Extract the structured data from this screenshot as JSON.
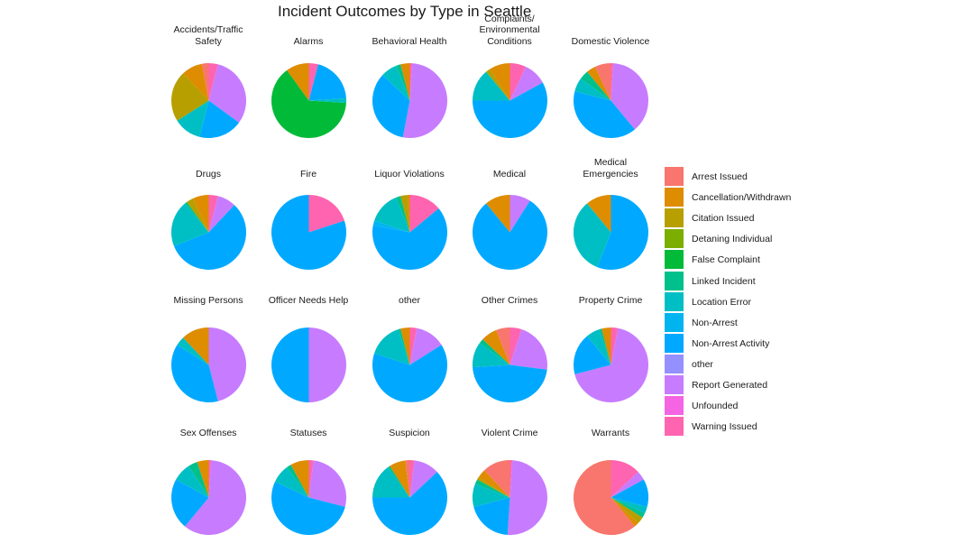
{
  "chart_data": {
    "type": "pie",
    "title": "Incident Outcomes by Type in Seattle",
    "legend_position": "right",
    "outcomes": [
      {
        "name": "Arrest Issued",
        "color": "#F8766D"
      },
      {
        "name": "Cancellation/Withdrawn",
        "color": "#DE8C00"
      },
      {
        "name": "Citation Issued",
        "color": "#B79F00"
      },
      {
        "name": "Detaning Individual",
        "color": "#7CAE00"
      },
      {
        "name": "False Complaint",
        "color": "#00BA38"
      },
      {
        "name": "Linked Incident",
        "color": "#00C08B"
      },
      {
        "name": "Location Error",
        "color": "#00BFC4"
      },
      {
        "name": "Non-Arrest",
        "color": "#00B4F0"
      },
      {
        "name": "Non-Arrest Activity",
        "color": "#00A9FF"
      },
      {
        "name": "other",
        "color": "#9590FF"
      },
      {
        "name": "Report Generated",
        "color": "#C77CFF"
      },
      {
        "name": "Unfounded",
        "color": "#F564E3"
      },
      {
        "name": "Warning Issued",
        "color": "#FF64B0"
      }
    ],
    "facets": [
      {
        "label": "Accidents/Traffic\nSafety",
        "shares": {
          "Report Generated": 0.31,
          "Non-Arrest Activity": 0.19,
          "Location Error": 0.12,
          "Citation Issued": 0.22,
          "Cancellation/Withdrawn": 0.09,
          "Arrest Issued": 0.03,
          "Warning Issued": 0.04
        }
      },
      {
        "label": "Alarms",
        "shares": {
          "Non-Arrest Activity": 0.2,
          "Location Error": 0.02,
          "False Complaint": 0.64,
          "Cancellation/Withdrawn": 0.1,
          "Warning Issued": 0.04
        }
      },
      {
        "label": "Behavioral Health",
        "shares": {
          "Report Generated": 0.52,
          "Non-Arrest Activity": 0.34,
          "Location Error": 0.07,
          "Linked Incident": 0.02,
          "Cancellation/Withdrawn": 0.04,
          "Warning Issued": 0.01
        }
      },
      {
        "label": "Complaints/\nEnvironmental\nConditions",
        "shares": {
          "Report Generated": 0.1,
          "Non-Arrest Activity": 0.58,
          "Location Error": 0.14,
          "Citation Issued": 0.02,
          "Cancellation/Withdrawn": 0.09,
          "Warning Issued": 0.07
        }
      },
      {
        "label": "Domestic Violence",
        "shares": {
          "Report Generated": 0.38,
          "Non-Arrest Activity": 0.4,
          "Location Error": 0.06,
          "Linked Incident": 0.04,
          "Cancellation/Withdrawn": 0.04,
          "Arrest Issued": 0.07,
          "Warning Issued": 0.01
        }
      },
      {
        "label": "Drugs",
        "shares": {
          "Report Generated": 0.08,
          "Non-Arrest Activity": 0.57,
          "Location Error": 0.2,
          "Linked Incident": 0.01,
          "Citation Issued": 0.03,
          "Cancellation/Withdrawn": 0.07,
          "Warning Issued": 0.04
        }
      },
      {
        "label": "Fire",
        "shares": {
          "Non-Arrest Activity": 0.8,
          "Warning Issued": 0.2
        }
      },
      {
        "label": "Liquor Violations",
        "shares": {
          "Non-Arrest": 0.02,
          "Non-Arrest Activity": 0.64,
          "Location Error": 0.14,
          "Linked Incident": 0.02,
          "Citation Issued": 0.03,
          "Cancellation/Withdrawn": 0.01,
          "Warning Issued": 0.14
        }
      },
      {
        "label": "Medical",
        "shares": {
          "Report Generated": 0.09,
          "Non-Arrest Activity": 0.8,
          "Cancellation/Withdrawn": 0.11
        }
      },
      {
        "label": "Medical\nEmergencies",
        "shares": {
          "Non-Arrest Activity": 0.56,
          "Location Error": 0.33,
          "Cancellation/Withdrawn": 0.11
        }
      },
      {
        "label": "Missing Persons",
        "shares": {
          "Report Generated": 0.46,
          "Non-Arrest Activity": 0.38,
          "Location Error": 0.04,
          "Cancellation/Withdrawn": 0.12
        }
      },
      {
        "label": "Officer Needs Help",
        "shares": {
          "Report Generated": 0.5,
          "Non-Arrest Activity": 0.5
        }
      },
      {
        "label": "other",
        "shares": {
          "Report Generated": 0.13,
          "Non-Arrest Activity": 0.64,
          "Location Error": 0.15,
          "Linked Incident": 0.01,
          "Cancellation/Withdrawn": 0.04,
          "Warning Issued": 0.03
        }
      },
      {
        "label": "Other Crimes",
        "shares": {
          "Report Generated": 0.22,
          "Non-Arrest Activity": 0.47,
          "Location Error": 0.11,
          "Linked Incident": 0.02,
          "Cancellation/Withdrawn": 0.07,
          "Arrest Issued": 0.06,
          "Warning Issued": 0.05
        }
      },
      {
        "label": "Property Crime",
        "shares": {
          "Report Generated": 0.68,
          "Non-Arrest Activity": 0.18,
          "Location Error": 0.06,
          "Linked Incident": 0.01,
          "Cancellation/Withdrawn": 0.04,
          "Warning Issued": 0.03
        }
      },
      {
        "label": "Sex Offenses",
        "shares": {
          "Report Generated": 0.6,
          "Non-Arrest Activity": 0.22,
          "Location Error": 0.08,
          "Linked Incident": 0.04,
          "Cancellation/Withdrawn": 0.05,
          "Warning Issued": 0.01
        }
      },
      {
        "label": "Statuses",
        "shares": {
          "Report Generated": 0.27,
          "Non-Arrest Activity": 0.53,
          "Location Error": 0.08,
          "Linked Incident": 0.02,
          "Cancellation/Withdrawn": 0.08,
          "Warning Issued": 0.02
        }
      },
      {
        "label": "Suspicion",
        "shares": {
          "Report Generated": 0.11,
          "Non-Arrest Activity": 0.62,
          "Location Error": 0.15,
          "Linked Incident": 0.01,
          "Cancellation/Withdrawn": 0.07,
          "Arrest Issued": 0.02,
          "Warning Issued": 0.02
        }
      },
      {
        "label": "Violent Crime",
        "shares": {
          "Report Generated": 0.5,
          "Non-Arrest Activity": 0.2,
          "Location Error": 0.1,
          "Linked Incident": 0.02,
          "Citation Issued": 0.01,
          "Cancellation/Withdrawn": 0.04,
          "Arrest Issued": 0.12,
          "Warning Issued": 0.01
        }
      },
      {
        "label": "Warrants",
        "shares": {
          "Report Generated": 0.04,
          "Non-Arrest Activity": 0.12,
          "Location Error": 0.03,
          "Linked Incident": 0.02,
          "Citation Issued": 0.03,
          "Cancellation/Withdrawn": 0.02,
          "Arrest Issued": 0.61,
          "Warning Issued": 0.13
        }
      }
    ]
  }
}
